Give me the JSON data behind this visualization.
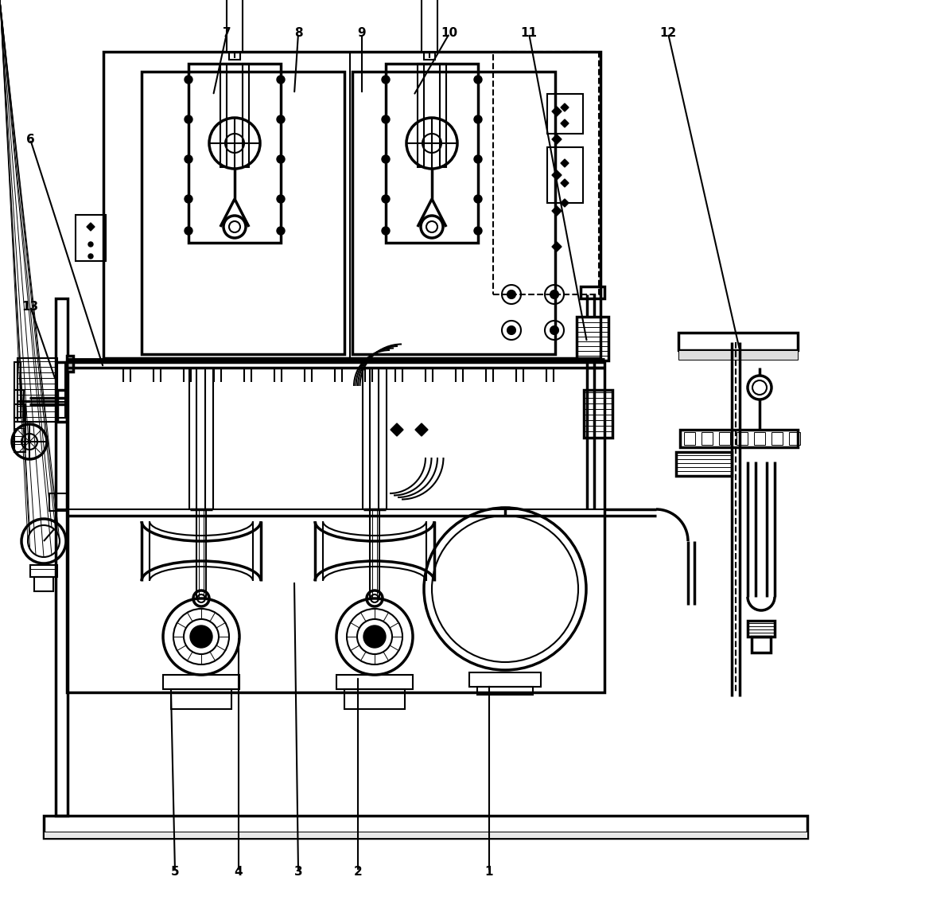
{
  "bg_color": "#ffffff",
  "lw": 1.5,
  "lw2": 2.5,
  "lw3": 3.5,
  "lw_thin": 0.7
}
